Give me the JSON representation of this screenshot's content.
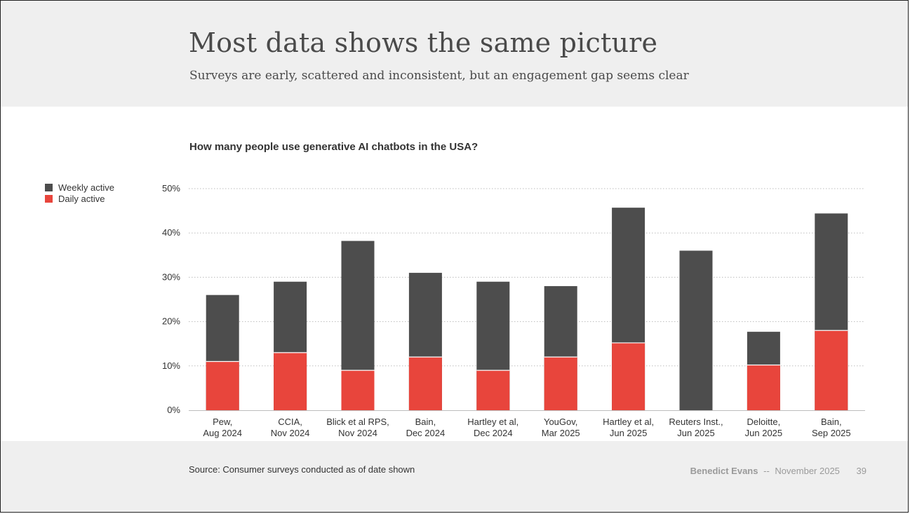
{
  "header": {
    "title": "Most data shows the same picture",
    "subtitle": "Surveys are early, scattered and inconsistent, but an engagement gap seems clear"
  },
  "colors": {
    "weekly": "#4d4d4d",
    "daily": "#e8453c",
    "grid": "#bdbdbd",
    "axis": "#bdbdbd"
  },
  "chart_data": {
    "type": "bar",
    "stacked": false,
    "title": "How many people use generative AI chatbots in the USA?",
    "categories": [
      [
        "Pew,",
        "Aug 2024"
      ],
      [
        "CCIA,",
        "Nov 2024"
      ],
      [
        "Blick et al RPS,",
        "Nov 2024"
      ],
      [
        "Bain,",
        "Dec 2024"
      ],
      [
        "Hartley et al,",
        "Dec 2024"
      ],
      [
        "YouGov,",
        "Mar 2025"
      ],
      [
        "Hartley et al,",
        "Jun 2025"
      ],
      [
        "Reuters Inst.,",
        "Jun 2025"
      ],
      [
        "Deloitte,",
        "Jun 2025"
      ],
      [
        "Bain,",
        "Sep 2025"
      ]
    ],
    "series": [
      {
        "name": "Weekly active",
        "values": [
          26,
          29,
          38.2,
          31,
          29,
          28,
          45.7,
          36,
          17.7,
          44.4
        ]
      },
      {
        "name": "Daily active",
        "values": [
          11,
          13,
          9,
          12,
          9,
          12,
          15.2,
          null,
          10.2,
          18
        ]
      }
    ],
    "ylim": [
      0,
      50
    ],
    "yticks": [
      0,
      10,
      20,
      30,
      40,
      50
    ],
    "ytick_labels": [
      "0%",
      "10%",
      "20%",
      "30%",
      "40%",
      "50%"
    ],
    "grid": true,
    "legend": "left"
  },
  "footer": {
    "source": "Source: Consumer surveys conducted as of date shown",
    "author": "Benedict Evans",
    "separator": "--",
    "date": "November 2025",
    "page": "39"
  }
}
